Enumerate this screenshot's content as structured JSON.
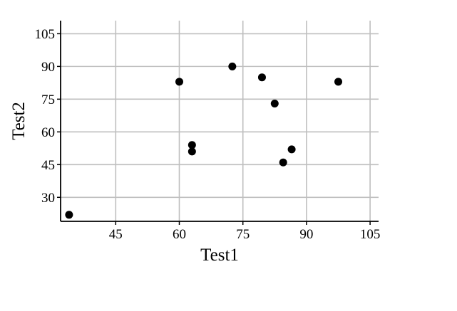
{
  "chart_data": {
    "type": "scatter",
    "title": "",
    "xlabel": "Test1",
    "ylabel": "Test2",
    "xlim": [
      32,
      107
    ],
    "ylim": [
      19,
      111
    ],
    "xticks": [
      45,
      60,
      75,
      90,
      105
    ],
    "yticks": [
      30,
      45,
      60,
      75,
      90,
      105
    ],
    "xtick_labels": [
      "45",
      "60",
      "75",
      "90",
      "105"
    ],
    "ytick_labels": [
      "30",
      "45",
      "60",
      "75",
      "90",
      "105"
    ],
    "grid": true,
    "points": [
      {
        "x": 34,
        "y": 22
      },
      {
        "x": 60,
        "y": 83
      },
      {
        "x": 63,
        "y": 54
      },
      {
        "x": 63,
        "y": 51
      },
      {
        "x": 72.5,
        "y": 90
      },
      {
        "x": 79.5,
        "y": 85
      },
      {
        "x": 82.5,
        "y": 73
      },
      {
        "x": 84.5,
        "y": 46
      },
      {
        "x": 86.5,
        "y": 52
      },
      {
        "x": 97.5,
        "y": 83
      }
    ],
    "colors": {
      "points": "#000000",
      "grid": "#bfbfbf",
      "axis": "#000000"
    }
  }
}
